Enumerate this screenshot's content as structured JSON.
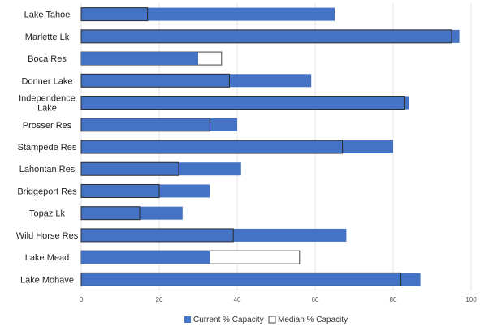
{
  "chart_data": {
    "type": "bar",
    "orientation": "horizontal",
    "categories": [
      "Lake Tahoe",
      "Marlette Lk",
      "Boca Res",
      "Donner Lake",
      "Independence Lake",
      "Prosser Res",
      "Stampede Res",
      "Lahontan Res",
      "Bridgeport Res",
      "Topaz Lk",
      "Wild Horse Res",
      "Lake Mead",
      "Lake Mohave"
    ],
    "series": [
      {
        "name": "Current % Capacity",
        "color": "#4472c4",
        "values": [
          65,
          97,
          30,
          59,
          84,
          40,
          80,
          41,
          33,
          26,
          68,
          33,
          87
        ]
      },
      {
        "name": "Median % Capacity",
        "color": "#ffffff",
        "values": [
          17,
          95,
          36,
          38,
          83,
          33,
          67,
          25,
          20,
          15,
          39,
          56,
          82
        ]
      }
    ],
    "xlim": [
      0,
      100
    ],
    "xticks": [
      0,
      20,
      40,
      60,
      80,
      100
    ],
    "grid": true,
    "legend_position": "bottom-center",
    "title": "",
    "xlabel": "",
    "ylabel": ""
  }
}
